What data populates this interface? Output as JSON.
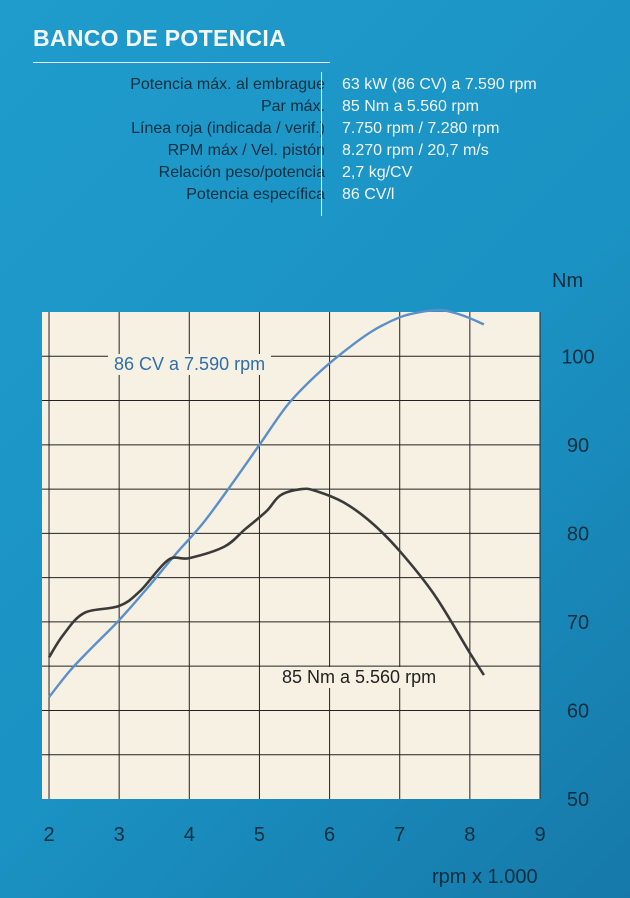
{
  "title": "BANCO DE POTENCIA",
  "specs": [
    {
      "label": "Potencia máx. al embrague",
      "value": "63 kW (86 CV) a 7.590 rpm"
    },
    {
      "label": "Par máx.",
      "value": "85 Nm a 5.560 rpm"
    },
    {
      "label": "Línea roja (indicada / verif.)",
      "value": "7.750 rpm / 7.280 rpm"
    },
    {
      "label": "RPM máx / Vel. pistón",
      "value": "8.270 rpm / 20,7 m/s"
    },
    {
      "label": "Relación peso/potencia",
      "value": "2,7 kg/CV"
    },
    {
      "label": "Potencia específica",
      "value": "86 CV/l"
    }
  ],
  "colors": {
    "power": "#5b8fc8",
    "torque": "#3a3a3a",
    "plot_bg": "#f7f1e3",
    "grid": "#222222"
  },
  "chart_data": {
    "type": "line",
    "xlabel": "rpm x 1.000",
    "y_right_label": "Nm",
    "xlim": [
      1.9,
      9
    ],
    "ylim": [
      50,
      105
    ],
    "x_ticks": [
      "2",
      "3",
      "4",
      "5",
      "6",
      "7",
      "8",
      "9"
    ],
    "y_right_ticks": [
      "50",
      "60",
      "70",
      "80",
      "90",
      "100"
    ],
    "grid": true,
    "annotations": {
      "power": "86 CV a 7.590 rpm",
      "torque": "85 Nm a 5.560 rpm"
    },
    "series": [
      {
        "key": "power",
        "x": [
          2.0,
          2.3,
          2.6,
          3.0,
          3.4,
          3.8,
          4.2,
          4.6,
          5.0,
          5.4,
          5.8,
          6.2,
          6.6,
          7.0,
          7.3,
          7.6,
          7.9,
          8.2
        ],
        "y": [
          61.5,
          64.5,
          67.0,
          70.2,
          73.8,
          77.6,
          81.2,
          85.5,
          90.0,
          94.5,
          97.8,
          100.5,
          102.8,
          104.4,
          105.0,
          105.2,
          104.6,
          103.6
        ]
      },
      {
        "key": "torque",
        "x": [
          2.0,
          2.2,
          2.5,
          3.0,
          3.3,
          3.7,
          4.0,
          4.5,
          4.8,
          5.1,
          5.3,
          5.6,
          5.8,
          6.2,
          6.6,
          7.0,
          7.5,
          8.0,
          8.2
        ],
        "y": [
          66.0,
          68.5,
          71.0,
          71.8,
          73.5,
          77.0,
          77.2,
          78.5,
          80.5,
          82.5,
          84.3,
          85.0,
          84.8,
          83.5,
          81.2,
          78.0,
          73.0,
          66.5,
          64.0
        ]
      }
    ]
  }
}
